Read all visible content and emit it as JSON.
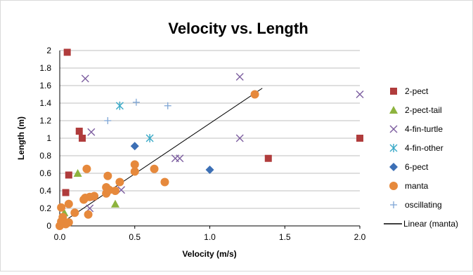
{
  "chart_data": {
    "type": "scatter",
    "title": "Velocity vs. Length",
    "xlabel": "Velocity (m/s)",
    "ylabel": "Length (m)",
    "xlim": [
      0,
      2
    ],
    "ylim": [
      0,
      2
    ],
    "x_ticks": [
      "0.0",
      "0.5",
      "1.0",
      "1.5",
      "2.0"
    ],
    "y_ticks": [
      "0",
      "0.2",
      "0.4",
      "0.6",
      "0.8",
      "1",
      "1.2",
      "1.4",
      "1.6",
      "1.8",
      "2"
    ],
    "grid": "horizontal",
    "legend_position": "right",
    "series": [
      {
        "name": "2-pect",
        "marker": "square",
        "color": "#b03c3c",
        "points": [
          [
            0.05,
            1.98
          ],
          [
            0.13,
            1.08
          ],
          [
            0.15,
            1.0
          ],
          [
            0.06,
            0.58
          ],
          [
            0.04,
            0.38
          ],
          [
            0.22,
            0.33
          ],
          [
            1.39,
            0.77
          ],
          [
            2.0,
            1.0
          ],
          [
            0.02,
            0.05
          ]
        ]
      },
      {
        "name": "2-pect-tail",
        "marker": "triangle",
        "color": "#8db33e",
        "points": [
          [
            0.12,
            0.6
          ],
          [
            0.37,
            0.25
          ],
          [
            0.03,
            0.15
          ]
        ]
      },
      {
        "name": "4-fin-turtle",
        "marker": "x",
        "color": "#7d5ea0",
        "points": [
          [
            0.17,
            1.68
          ],
          [
            1.2,
            1.7
          ],
          [
            2.0,
            1.5
          ],
          [
            0.21,
            1.07
          ],
          [
            1.2,
            1.0
          ],
          [
            0.77,
            0.77
          ],
          [
            0.8,
            0.77
          ],
          [
            0.41,
            0.41
          ],
          [
            0.2,
            0.2
          ]
        ]
      },
      {
        "name": "4-fin-other",
        "marker": "star",
        "color": "#39a9c7",
        "points": [
          [
            0.4,
            1.37
          ],
          [
            0.6,
            1.0
          ]
        ]
      },
      {
        "name": "6-pect",
        "marker": "diamond",
        "color": "#3c6fb5",
        "points": [
          [
            0.5,
            0.91
          ],
          [
            1.0,
            0.64
          ]
        ]
      },
      {
        "name": "manta",
        "marker": "circle",
        "color": "#e6893c",
        "points": [
          [
            1.3,
            1.5
          ],
          [
            0.18,
            0.65
          ],
          [
            0.32,
            0.57
          ],
          [
            0.5,
            0.7
          ],
          [
            0.5,
            0.62
          ],
          [
            0.63,
            0.65
          ],
          [
            0.7,
            0.5
          ],
          [
            0.4,
            0.5
          ],
          [
            0.37,
            0.4
          ],
          [
            0.31,
            0.44
          ],
          [
            0.33,
            0.41
          ],
          [
            0.31,
            0.37
          ],
          [
            0.2,
            0.33
          ],
          [
            0.17,
            0.32
          ],
          [
            0.16,
            0.3
          ],
          [
            0.23,
            0.34
          ],
          [
            0.1,
            0.15
          ],
          [
            0.19,
            0.13
          ],
          [
            0.01,
            0.21
          ],
          [
            0.06,
            0.25
          ],
          [
            0.02,
            0.1
          ],
          [
            0.01,
            0.05
          ],
          [
            0.04,
            0.02
          ],
          [
            0.06,
            0.04
          ],
          [
            0.0,
            0.0
          ]
        ]
      },
      {
        "name": "oscillating",
        "marker": "plus",
        "color": "#7fa6d6",
        "points": [
          [
            0.32,
            1.2
          ],
          [
            0.51,
            1.41
          ],
          [
            0.72,
            1.37
          ]
        ]
      }
    ],
    "trendline": {
      "name": "Linear (manta)",
      "color": "#000000",
      "x": [
        0.0,
        1.35
      ],
      "y": [
        0.02,
        1.57
      ]
    }
  }
}
